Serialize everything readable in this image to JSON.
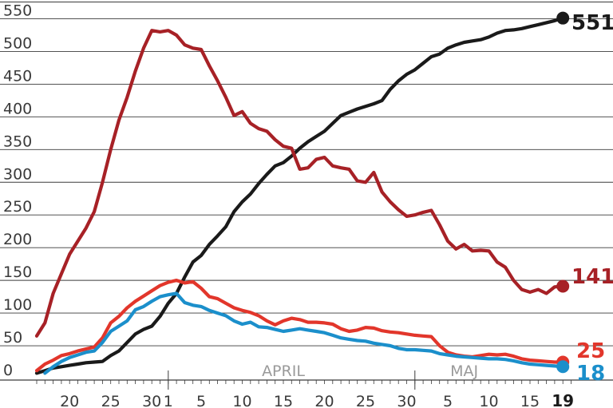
{
  "chart_data": {
    "type": "line",
    "ylim": [
      0,
      575
    ],
    "yticks": [
      0,
      50,
      100,
      150,
      200,
      250,
      300,
      350,
      400,
      450,
      500,
      550
    ],
    "xlim": [
      "2020-03-16",
      "2020-05-20"
    ],
    "xticks": [
      {
        "date": "2020-03-20",
        "label": "20",
        "bold": false
      },
      {
        "date": "2020-03-25",
        "label": "25",
        "bold": false
      },
      {
        "date": "2020-03-30",
        "label": "30",
        "bold": false
      },
      {
        "date": "2020-04-01",
        "label": "1",
        "bold": false
      },
      {
        "date": "2020-04-05",
        "label": "5",
        "bold": false
      },
      {
        "date": "2020-04-10",
        "label": "10",
        "bold": false
      },
      {
        "date": "2020-04-15",
        "label": "15",
        "bold": false
      },
      {
        "date": "2020-04-20",
        "label": "20",
        "bold": false
      },
      {
        "date": "2020-04-25",
        "label": "25",
        "bold": false
      },
      {
        "date": "2020-04-30",
        "label": "30",
        "bold": false
      },
      {
        "date": "2020-05-05",
        "label": "5",
        "bold": false
      },
      {
        "date": "2020-05-10",
        "label": "10",
        "bold": false
      },
      {
        "date": "2020-05-15",
        "label": "15",
        "bold": false
      },
      {
        "date": "2020-05-19",
        "label": "19",
        "bold": true
      }
    ],
    "month_labels": [
      {
        "date": "2020-04-15",
        "label": "APRIL"
      },
      {
        "date": "2020-05-07",
        "label": "MAJ"
      }
    ],
    "month_dividers": [
      "2020-04-01",
      "2020-05-01"
    ],
    "grid": true,
    "series": [
      {
        "color": "#1a1a1a",
        "end_label": "551",
        "points": [
          [
            "2020-03-16",
            8
          ],
          [
            "2020-03-17",
            12
          ],
          [
            "2020-03-18",
            16
          ],
          [
            "2020-03-19",
            18
          ],
          [
            "2020-03-20",
            20
          ],
          [
            "2020-03-21",
            22
          ],
          [
            "2020-03-22",
            24
          ],
          [
            "2020-03-23",
            25
          ],
          [
            "2020-03-24",
            26
          ],
          [
            "2020-03-25",
            35
          ],
          [
            "2020-03-26",
            42
          ],
          [
            "2020-03-27",
            55
          ],
          [
            "2020-03-28",
            68
          ],
          [
            "2020-03-29",
            75
          ],
          [
            "2020-03-30",
            80
          ],
          [
            "2020-03-31",
            95
          ],
          [
            "2020-04-01",
            115
          ],
          [
            "2020-04-02",
            130
          ],
          [
            "2020-04-03",
            155
          ],
          [
            "2020-04-04",
            178
          ],
          [
            "2020-04-05",
            188
          ],
          [
            "2020-04-06",
            205
          ],
          [
            "2020-04-07",
            218
          ],
          [
            "2020-04-08",
            232
          ],
          [
            "2020-04-09",
            255
          ],
          [
            "2020-04-10",
            270
          ],
          [
            "2020-04-11",
            282
          ],
          [
            "2020-04-12",
            298
          ],
          [
            "2020-04-13",
            312
          ],
          [
            "2020-04-14",
            325
          ],
          [
            "2020-04-15",
            330
          ],
          [
            "2020-04-16",
            340
          ],
          [
            "2020-04-17",
            352
          ],
          [
            "2020-04-18",
            362
          ],
          [
            "2020-04-19",
            370
          ],
          [
            "2020-04-20",
            378
          ],
          [
            "2020-04-21",
            390
          ],
          [
            "2020-04-22",
            402
          ],
          [
            "2020-04-23",
            407
          ],
          [
            "2020-04-24",
            412
          ],
          [
            "2020-04-25",
            416
          ],
          [
            "2020-04-26",
            420
          ],
          [
            "2020-04-27",
            425
          ],
          [
            "2020-04-28",
            442
          ],
          [
            "2020-04-29",
            455
          ],
          [
            "2020-04-30",
            465
          ],
          [
            "2020-05-01",
            472
          ],
          [
            "2020-05-02",
            482
          ],
          [
            "2020-05-03",
            492
          ],
          [
            "2020-05-04",
            496
          ],
          [
            "2020-05-05",
            505
          ],
          [
            "2020-05-06",
            510
          ],
          [
            "2020-05-07",
            514
          ],
          [
            "2020-05-08",
            516
          ],
          [
            "2020-05-09",
            518
          ],
          [
            "2020-05-10",
            522
          ],
          [
            "2020-05-11",
            528
          ],
          [
            "2020-05-12",
            532
          ],
          [
            "2020-05-13",
            533
          ],
          [
            "2020-05-14",
            535
          ],
          [
            "2020-05-15",
            538
          ],
          [
            "2020-05-16",
            541
          ],
          [
            "2020-05-17",
            544
          ],
          [
            "2020-05-18",
            547
          ],
          [
            "2020-05-19",
            551
          ]
        ]
      },
      {
        "color": "#a72126",
        "end_label": "141",
        "points": [
          [
            "2020-03-16",
            65
          ],
          [
            "2020-03-17",
            85
          ],
          [
            "2020-03-18",
            130
          ],
          [
            "2020-03-19",
            160
          ],
          [
            "2020-03-20",
            190
          ],
          [
            "2020-03-21",
            210
          ],
          [
            "2020-03-22",
            230
          ],
          [
            "2020-03-23",
            255
          ],
          [
            "2020-03-24",
            300
          ],
          [
            "2020-03-25",
            350
          ],
          [
            "2020-03-26",
            395
          ],
          [
            "2020-03-27",
            430
          ],
          [
            "2020-03-28",
            470
          ],
          [
            "2020-03-29",
            505
          ],
          [
            "2020-03-30",
            532
          ],
          [
            "2020-03-31",
            530
          ],
          [
            "2020-04-01",
            532
          ],
          [
            "2020-04-02",
            525
          ],
          [
            "2020-04-03",
            510
          ],
          [
            "2020-04-04",
            505
          ],
          [
            "2020-04-05",
            503
          ],
          [
            "2020-04-06",
            478
          ],
          [
            "2020-04-07",
            455
          ],
          [
            "2020-04-08",
            430
          ],
          [
            "2020-04-09",
            402
          ],
          [
            "2020-04-10",
            408
          ],
          [
            "2020-04-11",
            390
          ],
          [
            "2020-04-12",
            382
          ],
          [
            "2020-04-13",
            378
          ],
          [
            "2020-04-14",
            365
          ],
          [
            "2020-04-15",
            355
          ],
          [
            "2020-04-16",
            352
          ],
          [
            "2020-04-17",
            320
          ],
          [
            "2020-04-18",
            322
          ],
          [
            "2020-04-19",
            335
          ],
          [
            "2020-04-20",
            338
          ],
          [
            "2020-04-21",
            325
          ],
          [
            "2020-04-22",
            322
          ],
          [
            "2020-04-23",
            320
          ],
          [
            "2020-04-24",
            302
          ],
          [
            "2020-04-25",
            300
          ],
          [
            "2020-04-26",
            315
          ],
          [
            "2020-04-27",
            285
          ],
          [
            "2020-04-28",
            270
          ],
          [
            "2020-04-29",
            258
          ],
          [
            "2020-04-30",
            248
          ],
          [
            "2020-05-01",
            250
          ],
          [
            "2020-05-02",
            254
          ],
          [
            "2020-05-03",
            257
          ],
          [
            "2020-05-04",
            235
          ],
          [
            "2020-05-05",
            210
          ],
          [
            "2020-05-06",
            198
          ],
          [
            "2020-05-07",
            205
          ],
          [
            "2020-05-08",
            195
          ],
          [
            "2020-05-09",
            196
          ],
          [
            "2020-05-10",
            195
          ],
          [
            "2020-05-11",
            178
          ],
          [
            "2020-05-12",
            170
          ],
          [
            "2020-05-13",
            150
          ],
          [
            "2020-05-14",
            136
          ],
          [
            "2020-05-15",
            132
          ],
          [
            "2020-05-16",
            136
          ],
          [
            "2020-05-17",
            130
          ],
          [
            "2020-05-18",
            140
          ],
          [
            "2020-05-19",
            141
          ]
        ]
      },
      {
        "color": "#e2362b",
        "end_label": "25",
        "points": [
          [
            "2020-03-16",
            12
          ],
          [
            "2020-03-17",
            22
          ],
          [
            "2020-03-18",
            28
          ],
          [
            "2020-03-19",
            35
          ],
          [
            "2020-03-20",
            38
          ],
          [
            "2020-03-21",
            42
          ],
          [
            "2020-03-22",
            45
          ],
          [
            "2020-03-23",
            48
          ],
          [
            "2020-03-24",
            62
          ],
          [
            "2020-03-25",
            85
          ],
          [
            "2020-03-26",
            95
          ],
          [
            "2020-03-27",
            108
          ],
          [
            "2020-03-28",
            118
          ],
          [
            "2020-03-29",
            126
          ],
          [
            "2020-03-30",
            134
          ],
          [
            "2020-03-31",
            142
          ],
          [
            "2020-04-01",
            147
          ],
          [
            "2020-04-02",
            150
          ],
          [
            "2020-04-03",
            146
          ],
          [
            "2020-04-04",
            148
          ],
          [
            "2020-04-05",
            138
          ],
          [
            "2020-04-06",
            125
          ],
          [
            "2020-04-07",
            122
          ],
          [
            "2020-04-08",
            115
          ],
          [
            "2020-04-09",
            108
          ],
          [
            "2020-04-10",
            104
          ],
          [
            "2020-04-11",
            101
          ],
          [
            "2020-04-12",
            96
          ],
          [
            "2020-04-13",
            88
          ],
          [
            "2020-04-14",
            82
          ],
          [
            "2020-04-15",
            88
          ],
          [
            "2020-04-16",
            92
          ],
          [
            "2020-04-17",
            90
          ],
          [
            "2020-04-18",
            86
          ],
          [
            "2020-04-19",
            86
          ],
          [
            "2020-04-20",
            85
          ],
          [
            "2020-04-21",
            83
          ],
          [
            "2020-04-22",
            76
          ],
          [
            "2020-04-23",
            72
          ],
          [
            "2020-04-24",
            74
          ],
          [
            "2020-04-25",
            78
          ],
          [
            "2020-04-26",
            77
          ],
          [
            "2020-04-27",
            73
          ],
          [
            "2020-04-28",
            71
          ],
          [
            "2020-04-29",
            70
          ],
          [
            "2020-04-30",
            68
          ],
          [
            "2020-05-01",
            66
          ],
          [
            "2020-05-02",
            65
          ],
          [
            "2020-05-03",
            64
          ],
          [
            "2020-05-04",
            50
          ],
          [
            "2020-05-05",
            40
          ],
          [
            "2020-05-06",
            36
          ],
          [
            "2020-05-07",
            34
          ],
          [
            "2020-05-08",
            33
          ],
          [
            "2020-05-09",
            35
          ],
          [
            "2020-05-10",
            37
          ],
          [
            "2020-05-11",
            36
          ],
          [
            "2020-05-12",
            37
          ],
          [
            "2020-05-13",
            34
          ],
          [
            "2020-05-14",
            30
          ],
          [
            "2020-05-15",
            28
          ],
          [
            "2020-05-16",
            27
          ],
          [
            "2020-05-17",
            26
          ],
          [
            "2020-05-18",
            25
          ],
          [
            "2020-05-19",
            25
          ]
        ]
      },
      {
        "color": "#1b8fcb",
        "end_label": "18",
        "points": [
          [
            "2020-03-17",
            8
          ],
          [
            "2020-03-18",
            18
          ],
          [
            "2020-03-19",
            26
          ],
          [
            "2020-03-20",
            32
          ],
          [
            "2020-03-21",
            36
          ],
          [
            "2020-03-22",
            40
          ],
          [
            "2020-03-23",
            42
          ],
          [
            "2020-03-24",
            55
          ],
          [
            "2020-03-25",
            72
          ],
          [
            "2020-03-26",
            80
          ],
          [
            "2020-03-27",
            88
          ],
          [
            "2020-03-28",
            105
          ],
          [
            "2020-03-29",
            110
          ],
          [
            "2020-03-30",
            118
          ],
          [
            "2020-03-31",
            125
          ],
          [
            "2020-04-01",
            128
          ],
          [
            "2020-04-02",
            130
          ],
          [
            "2020-04-03",
            116
          ],
          [
            "2020-04-04",
            112
          ],
          [
            "2020-04-05",
            110
          ],
          [
            "2020-04-06",
            104
          ],
          [
            "2020-04-07",
            100
          ],
          [
            "2020-04-08",
            96
          ],
          [
            "2020-04-09",
            88
          ],
          [
            "2020-04-10",
            83
          ],
          [
            "2020-04-11",
            86
          ],
          [
            "2020-04-12",
            79
          ],
          [
            "2020-04-13",
            78
          ],
          [
            "2020-04-14",
            75
          ],
          [
            "2020-04-15",
            72
          ],
          [
            "2020-04-16",
            74
          ],
          [
            "2020-04-17",
            76
          ],
          [
            "2020-04-18",
            74
          ],
          [
            "2020-04-19",
            72
          ],
          [
            "2020-04-20",
            70
          ],
          [
            "2020-04-21",
            66
          ],
          [
            "2020-04-22",
            62
          ],
          [
            "2020-04-23",
            60
          ],
          [
            "2020-04-24",
            58
          ],
          [
            "2020-04-25",
            57
          ],
          [
            "2020-04-26",
            54
          ],
          [
            "2020-04-27",
            52
          ],
          [
            "2020-04-28",
            50
          ],
          [
            "2020-04-29",
            46
          ],
          [
            "2020-04-30",
            44
          ],
          [
            "2020-05-01",
            44
          ],
          [
            "2020-05-02",
            43
          ],
          [
            "2020-05-03",
            42
          ],
          [
            "2020-05-04",
            38
          ],
          [
            "2020-05-05",
            36
          ],
          [
            "2020-05-06",
            34
          ],
          [
            "2020-05-07",
            33
          ],
          [
            "2020-05-08",
            32
          ],
          [
            "2020-05-09",
            31
          ],
          [
            "2020-05-10",
            30
          ],
          [
            "2020-05-11",
            30
          ],
          [
            "2020-05-12",
            29
          ],
          [
            "2020-05-13",
            27
          ],
          [
            "2020-05-14",
            24
          ],
          [
            "2020-05-15",
            22
          ],
          [
            "2020-05-16",
            21
          ],
          [
            "2020-05-17",
            20
          ],
          [
            "2020-05-18",
            19
          ],
          [
            "2020-05-19",
            18
          ]
        ]
      }
    ]
  }
}
